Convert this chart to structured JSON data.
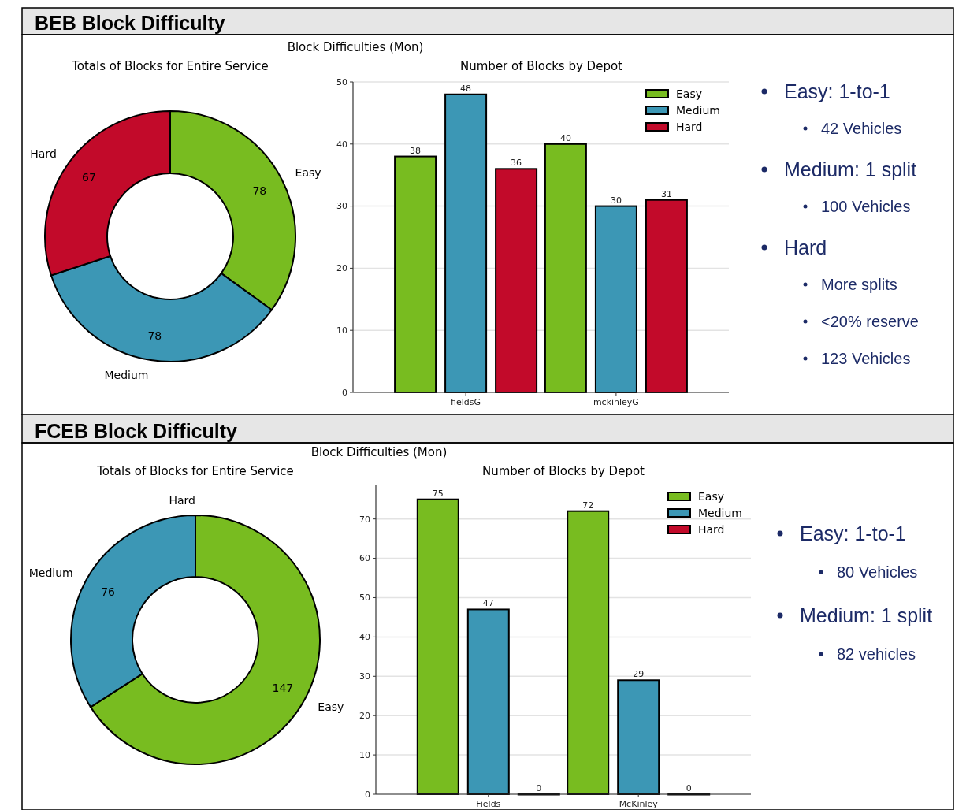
{
  "chart_data": [
    {
      "type": "donut",
      "title": "Totals of Blocks for Entire Service",
      "categories": [
        "Easy",
        "Medium",
        "Hard"
      ],
      "values": [
        78,
        78,
        67
      ],
      "colors": [
        "#78bc20",
        "#3c97b5",
        "#c20a2a"
      ],
      "data_labels": true
    },
    {
      "type": "bar",
      "title": "Number of Blocks by Depot",
      "categories": [
        "fieldsG",
        "mckinleyG"
      ],
      "series": [
        {
          "name": "Easy",
          "color": "#78bc20",
          "values": [
            38,
            40
          ]
        },
        {
          "name": "Medium",
          "color": "#3c97b5",
          "values": [
            48,
            30
          ]
        },
        {
          "name": "Hard",
          "color": "#c20a2a",
          "values": [
            36,
            31
          ]
        }
      ],
      "ylim": [
        0,
        50
      ],
      "yticks": [
        0,
        10,
        20,
        30,
        40,
        50
      ],
      "grid": "y",
      "legend": "top right",
      "data_labels": true
    },
    {
      "type": "other",
      "title": "BEB Block Difficulty",
      "subtitle": "Block Difficulties (Mon)",
      "annotations": [
        "Easy: 1-to-1",
        "42 Vehicles",
        "Medium: 1 split",
        "100 Vehicles",
        "Hard",
        "More splits",
        "<20% reserve",
        "123 Vehicles"
      ]
    },
    {
      "type": "donut",
      "title": "Totals of Blocks for Entire Service",
      "categories": [
        "Easy",
        "Medium",
        "Hard"
      ],
      "values": [
        147,
        76,
        0
      ],
      "colors": [
        "#78bc20",
        "#3c97b5",
        "#c20a2a"
      ],
      "value_labels": [
        "147",
        "76",
        null
      ]
    },
    {
      "type": "bar",
      "title": "Number of Blocks by Depot",
      "categories": [
        "Fields",
        "McKinley"
      ],
      "series": [
        {
          "name": "Easy",
          "color": "#78bc20",
          "values": [
            75,
            72
          ]
        },
        {
          "name": "Medium",
          "color": "#3c97b5",
          "values": [
            47,
            29
          ]
        },
        {
          "name": "Hard",
          "color": "#c20a2a",
          "values": [
            0,
            0
          ]
        }
      ],
      "ylim": [
        0,
        78.75
      ],
      "yticks": [
        0,
        10,
        20,
        30,
        40,
        50,
        60,
        70
      ],
      "grid": "y",
      "legend": "top right",
      "data_labels": true
    },
    {
      "type": "other",
      "title": "FCEB Block Difficulty",
      "subtitle": "Block Difficulties (Mon)",
      "annotations": [
        "Easy: 1-to-1",
        "80 Vehicles",
        "Medium: 1 split",
        "82 vehicles"
      ]
    }
  ]
}
